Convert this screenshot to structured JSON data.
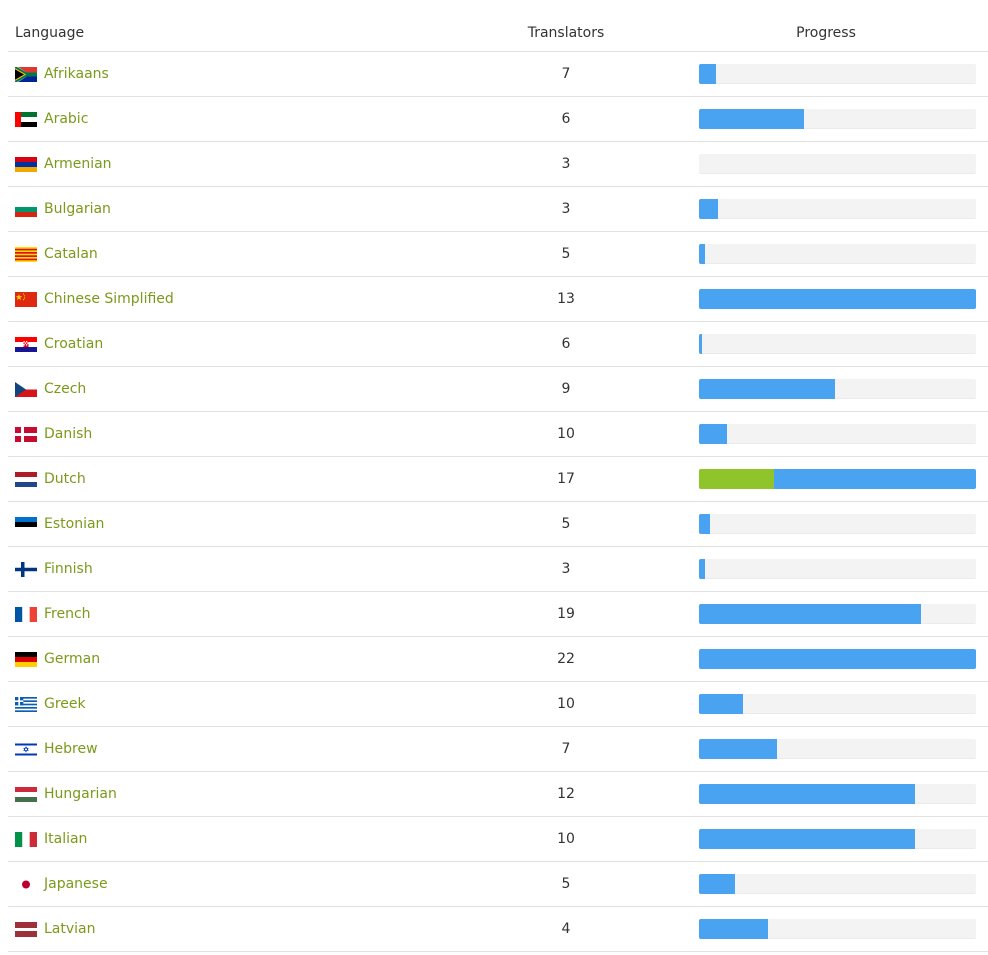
{
  "header": {
    "language": "Language",
    "translators": "Translators",
    "progress": "Progress"
  },
  "colors": {
    "link": "#7a9a1a",
    "bar_blue": "#4aa3f0",
    "bar_green": "#8fc42a",
    "bar_bg": "#f3f3f3"
  },
  "rows": [
    {
      "name": "Afrikaans",
      "flag": "south-africa-flag",
      "translators": "7",
      "progress": 0.06,
      "approved": 0
    },
    {
      "name": "Arabic",
      "flag": "uae-flag",
      "translators": "6",
      "progress": 0.38,
      "approved": 0
    },
    {
      "name": "Armenian",
      "flag": "armenia-flag",
      "translators": "3",
      "progress": 0.0,
      "approved": 0
    },
    {
      "name": "Bulgarian",
      "flag": "bulgaria-flag",
      "translators": "3",
      "progress": 0.07,
      "approved": 0
    },
    {
      "name": "Catalan",
      "flag": "catalonia-flag",
      "translators": "5",
      "progress": 0.02,
      "approved": 0
    },
    {
      "name": "Chinese Simplified",
      "flag": "china-flag",
      "translators": "13",
      "progress": 1.0,
      "approved": 0
    },
    {
      "name": "Croatian",
      "flag": "croatia-flag",
      "translators": "6",
      "progress": 0.01,
      "approved": 0
    },
    {
      "name": "Czech",
      "flag": "czech-flag",
      "translators": "9",
      "progress": 0.49,
      "approved": 0
    },
    {
      "name": "Danish",
      "flag": "denmark-flag",
      "translators": "10",
      "progress": 0.1,
      "approved": 0
    },
    {
      "name": "Dutch",
      "flag": "netherlands-flag",
      "translators": "17",
      "progress": 1.0,
      "approved": 0.27
    },
    {
      "name": "Estonian",
      "flag": "estonia-flag",
      "translators": "5",
      "progress": 0.04,
      "approved": 0
    },
    {
      "name": "Finnish",
      "flag": "finland-flag",
      "translators": "3",
      "progress": 0.02,
      "approved": 0
    },
    {
      "name": "French",
      "flag": "france-flag",
      "translators": "19",
      "progress": 0.8,
      "approved": 0
    },
    {
      "name": "German",
      "flag": "germany-flag",
      "translators": "22",
      "progress": 1.0,
      "approved": 0
    },
    {
      "name": "Greek",
      "flag": "greece-flag",
      "translators": "10",
      "progress": 0.16,
      "approved": 0
    },
    {
      "name": "Hebrew",
      "flag": "israel-flag",
      "translators": "7",
      "progress": 0.28,
      "approved": 0
    },
    {
      "name": "Hungarian",
      "flag": "hungary-flag",
      "translators": "12",
      "progress": 0.78,
      "approved": 0
    },
    {
      "name": "Italian",
      "flag": "italy-flag",
      "translators": "10",
      "progress": 0.78,
      "approved": 0
    },
    {
      "name": "Japanese",
      "flag": "japan-flag",
      "translators": "5",
      "progress": 0.13,
      "approved": 0
    },
    {
      "name": "Latvian",
      "flag": "latvia-flag",
      "translators": "4",
      "progress": 0.25,
      "approved": 0
    }
  ]
}
